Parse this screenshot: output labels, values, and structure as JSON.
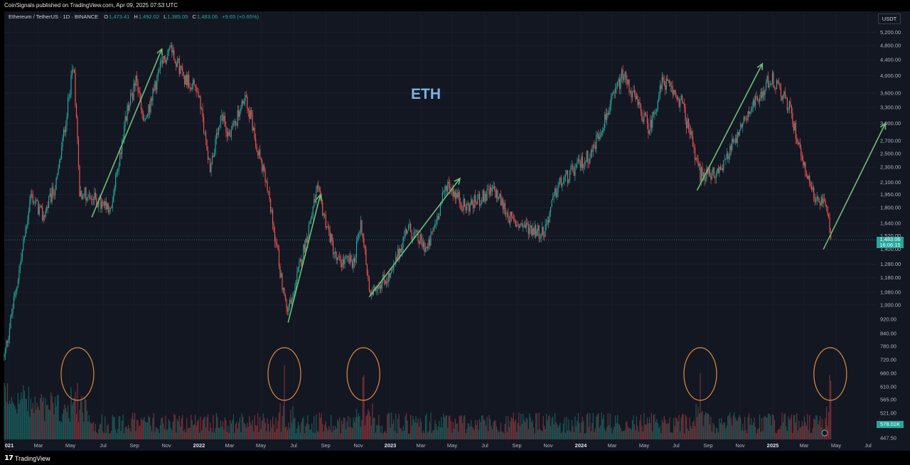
{
  "header": {
    "publish_line": "CoinSignals published on TradingView.com, Apr 09, 2025 07:53 UTC"
  },
  "legend": {
    "symbol": "Ethereum / TetherUS · 1D · BINANCE",
    "o_label": "O",
    "o": "1,473.41",
    "h_label": "H",
    "h": "1,492.02",
    "l_label": "L",
    "l": "1,385.05",
    "c_label": "C",
    "c": "1,483.06",
    "change": "+9.65 (+0.65%)"
  },
  "currency": "USDT",
  "annotation": "ETH",
  "last_price": {
    "price": "1,483.06",
    "countdown": "16:06:15"
  },
  "volume_tag": "578.01K",
  "footer": {
    "logo": "TradingView"
  },
  "colors": {
    "background": "#131722",
    "up": "#26a69a",
    "down": "#ef5350",
    "arrow": "#6fbf73",
    "ellipse": "#e08a3c",
    "label": "#7fb0e5"
  },
  "chart_data": {
    "type": "candlestick",
    "y_scale": "log",
    "y_ticks": [
      "447.50",
      "521.00",
      "565.00",
      "610.00",
      "660.00",
      "720.00",
      "780.00",
      "840.00",
      "920.00",
      "1,000.00",
      "1,080.00",
      "1,180.00",
      "1,280.00",
      "1,400.00",
      "1,520.00",
      "1,640.00",
      "1,800.00",
      "1,950.00",
      "2,100.00",
      "2,300.00",
      "2,500.00",
      "2,700.00",
      "3,000.00",
      "3,300.00",
      "3,600.00",
      "4,000.00",
      "4,400.00",
      "4,800.00",
      "5,200.00"
    ],
    "x_ticks": [
      "021",
      "Mar",
      "May",
      "Jul",
      "Sep",
      "Nov",
      "2022",
      "Mar",
      "May",
      "Jul",
      "Sep",
      "Nov",
      "2023",
      "Mar",
      "May",
      "Jul",
      "Sep",
      "Nov",
      "2024",
      "Mar",
      "May",
      "Jul",
      "Sep",
      "Nov",
      "2025",
      "Mar",
      "May",
      "Jul"
    ],
    "price_series": [
      [
        "2021-01-01",
        730
      ],
      [
        "2021-02-01",
        1300
      ],
      [
        "2021-02-20",
        1950
      ],
      [
        "2021-03-15",
        1700
      ],
      [
        "2021-04-10",
        2100
      ],
      [
        "2021-05-12",
        4300
      ],
      [
        "2021-05-23",
        2000
      ],
      [
        "2021-06-20",
        1900
      ],
      [
        "2021-07-20",
        1750
      ],
      [
        "2021-08-20",
        3200
      ],
      [
        "2021-09-07",
        3900
      ],
      [
        "2021-09-22",
        2950
      ],
      [
        "2021-10-20",
        4100
      ],
      [
        "2021-11-10",
        4800
      ],
      [
        "2021-12-04",
        4000
      ],
      [
        "2021-12-31",
        3700
      ],
      [
        "2022-01-24",
        2300
      ],
      [
        "2022-02-15",
        3100
      ],
      [
        "2022-03-01",
        2800
      ],
      [
        "2022-04-02",
        3500
      ],
      [
        "2022-05-12",
        2000
      ],
      [
        "2022-06-18",
        950
      ],
      [
        "2022-07-08",
        1200
      ],
      [
        "2022-08-14",
        2000
      ],
      [
        "2022-09-20",
        1300
      ],
      [
        "2022-10-21",
        1300
      ],
      [
        "2022-11-05",
        1650
      ],
      [
        "2022-11-20",
        1100
      ],
      [
        "2023-01-01",
        1200
      ],
      [
        "2023-01-30",
        1600
      ],
      [
        "2023-03-10",
        1400
      ],
      [
        "2023-04-16",
        2100
      ],
      [
        "2023-05-20",
        1800
      ],
      [
        "2023-07-14",
        2000
      ],
      [
        "2023-08-17",
        1650
      ],
      [
        "2023-10-15",
        1550
      ],
      [
        "2023-11-10",
        2050
      ],
      [
        "2024-01-12",
        2500
      ],
      [
        "2024-03-12",
        4050
      ],
      [
        "2024-05-01",
        2900
      ],
      [
        "2024-05-27",
        3900
      ],
      [
        "2024-07-01",
        3400
      ],
      [
        "2024-08-05",
        2200
      ],
      [
        "2024-09-06",
        2200
      ],
      [
        "2024-10-01",
        2600
      ],
      [
        "2024-12-16",
        4000
      ],
      [
        "2025-01-20",
        3300
      ],
      [
        "2025-02-04",
        2700
      ],
      [
        "2025-02-28",
        2100
      ],
      [
        "2025-03-10",
        1900
      ],
      [
        "2025-03-30",
        1800
      ],
      [
        "2025-04-09",
        1483.06
      ]
    ],
    "arrows": [
      {
        "from": [
          "2021-06-15",
          1700
        ],
        "to": [
          "2021-10-25",
          4700
        ]
      },
      {
        "from": [
          "2022-06-20",
          900
        ],
        "to": [
          "2022-08-20",
          1950
        ]
      },
      {
        "from": [
          "2022-11-20",
          1050
        ],
        "to": [
          "2023-05-10",
          2150
        ]
      },
      {
        "from": [
          "2024-07-30",
          2000
        ],
        "to": [
          "2024-11-30",
          4300
        ]
      },
      {
        "from": [
          "2025-03-25",
          1400
        ],
        "to": [
          "2025-07-20",
          3000
        ]
      }
    ],
    "volume_highlights": [
      "2021-05-19",
      "2022-06-13",
      "2022-11-09",
      "2024-08-05",
      "2025-04-07"
    ]
  }
}
